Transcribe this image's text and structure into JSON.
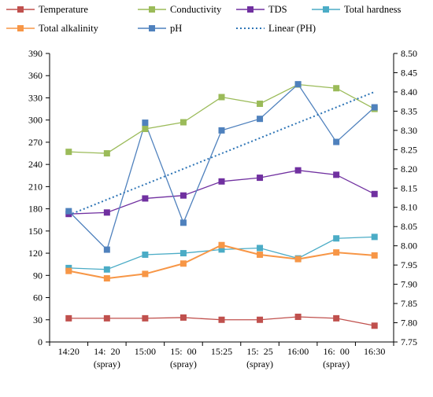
{
  "chart_data": {
    "type": "line",
    "categories": [
      "14:20",
      "14:  20\n(spray)",
      "15:00",
      "15:  00\n(spray)",
      "15:25",
      "15:  25\n(spray)",
      "16:00",
      "16:  00\n(spray)",
      "16:30"
    ],
    "left_axis": {
      "ylim": [
        0,
        390
      ],
      "ticks": [
        "0",
        "30",
        "60",
        "90",
        "120",
        "150",
        "180",
        "210",
        "240",
        "270",
        "300",
        "330",
        "360",
        "390"
      ]
    },
    "right_axis": {
      "ylim": [
        7.75,
        8.5
      ],
      "ticks": [
        "7.75",
        "7.80",
        "7.85",
        "7.90",
        "7.95",
        "8.00",
        "8.05",
        "8.10",
        "8.15",
        "8.20",
        "8.25",
        "8.30",
        "8.35",
        "8.40",
        "8.45",
        "8.50"
      ]
    },
    "series": [
      {
        "name": "Temperature",
        "axis": "left",
        "color": "#c0504d",
        "values": [
          32,
          32,
          32,
          33,
          30,
          30,
          34,
          32,
          22
        ]
      },
      {
        "name": "Conductivity",
        "axis": "left",
        "color": "#9bbb59",
        "values": [
          257,
          255,
          288,
          297,
          331,
          322,
          348,
          343,
          315
        ]
      },
      {
        "name": "TDS",
        "axis": "left",
        "color": "#7030a0",
        "values": [
          173,
          175,
          194,
          198,
          217,
          222,
          232,
          226,
          200
        ]
      },
      {
        "name": "Total hardness",
        "axis": "left",
        "color": "#4bacc6",
        "values": [
          100,
          98,
          118,
          120,
          125,
          127,
          113,
          140,
          142
        ]
      },
      {
        "name": "Total alkalinity",
        "axis": "left",
        "color": "#f79646",
        "values": [
          96,
          86,
          92,
          106,
          131,
          118,
          112,
          121,
          117
        ]
      },
      {
        "name": "pH",
        "axis": "right",
        "color": "#4f81bd",
        "values": [
          8.09,
          7.99,
          8.32,
          8.06,
          8.3,
          8.33,
          8.42,
          8.27,
          8.36
        ]
      }
    ],
    "trendline": {
      "name": "Linear (PH)",
      "axis": "right",
      "color": "#2e75b6",
      "from": 8.08,
      "to": 8.4
    },
    "legend_position": "top"
  }
}
